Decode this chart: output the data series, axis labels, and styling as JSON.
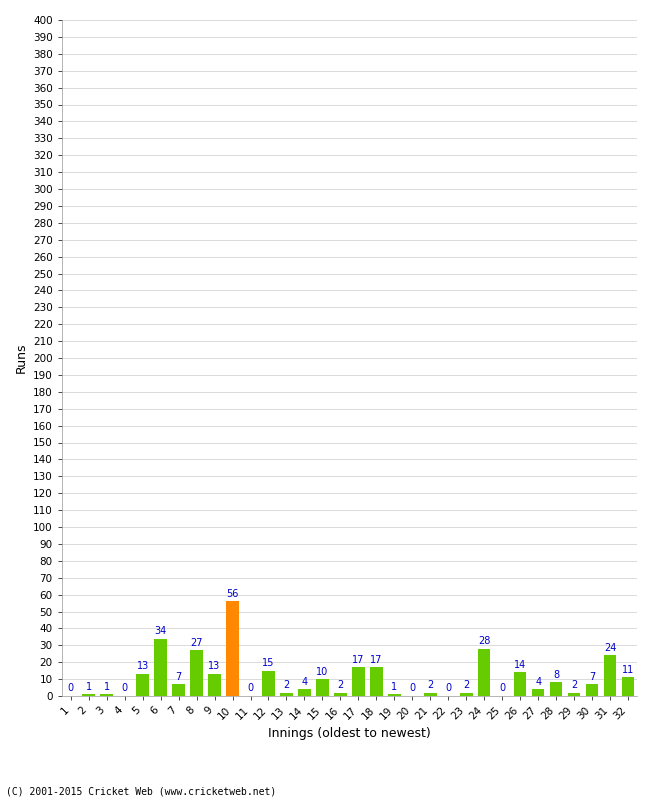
{
  "xlabel": "Innings (oldest to newest)",
  "ylabel": "Runs",
  "values": [
    0,
    1,
    1,
    0,
    13,
    34,
    7,
    27,
    13,
    56,
    0,
    15,
    2,
    4,
    10,
    2,
    17,
    17,
    1,
    0,
    2,
    0,
    2,
    28,
    0,
    14,
    4,
    8,
    2,
    7,
    24,
    11
  ],
  "innings": [
    "1",
    "2",
    "3",
    "4",
    "5",
    "6",
    "7",
    "8",
    "9",
    "10",
    "11",
    "12",
    "13",
    "14",
    "15",
    "16",
    "17",
    "18",
    "19",
    "20",
    "21",
    "22",
    "23",
    "24",
    "25",
    "26",
    "27",
    "28",
    "29",
    "30",
    "31",
    "32"
  ],
  "highlight_index": 9,
  "bar_color_normal": "#66cc00",
  "bar_color_highlight": "#ff8800",
  "label_color": "#0000cc",
  "grid_color": "#cccccc",
  "background_color": "#ffffff",
  "ylim": [
    0,
    400
  ],
  "ytick_step": 10,
  "dpi": 100,
  "footer": "(C) 2001-2015 Cricket Web (www.cricketweb.net)"
}
